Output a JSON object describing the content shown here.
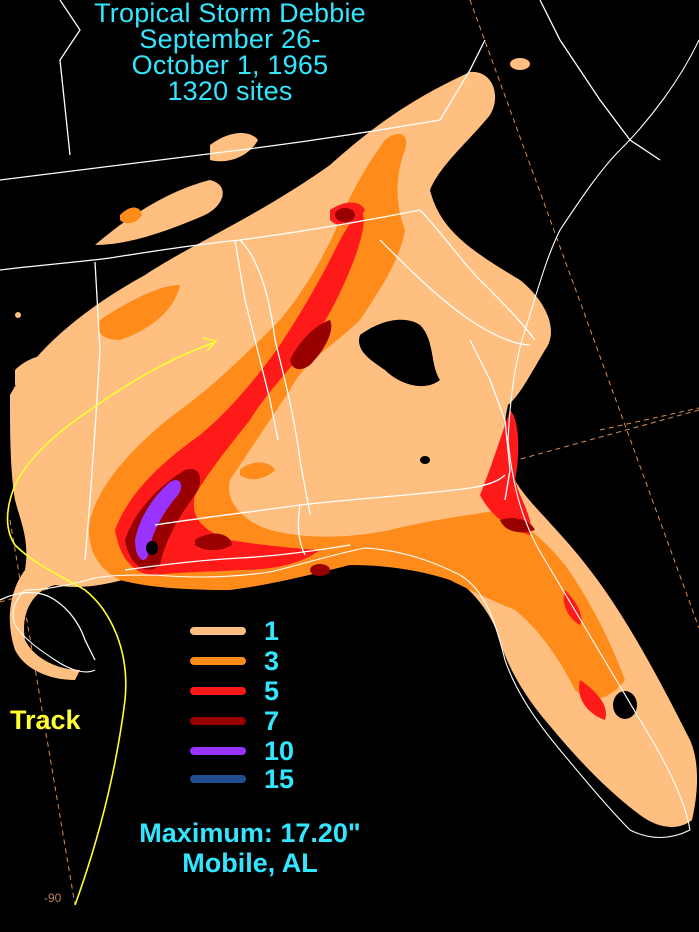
{
  "title": {
    "line1": "Tropical Storm Debbie",
    "line2": "September 26-",
    "line3": "October 1, 1965",
    "line4": "1320 sites"
  },
  "legend": [
    {
      "label": "1",
      "color": "#ffbf80"
    },
    {
      "label": "3",
      "color": "#ff8c1a"
    },
    {
      "label": "5",
      "color": "#ff1a1a"
    },
    {
      "label": "7",
      "color": "#990000"
    },
    {
      "label": "10",
      "color": "#9933ff"
    },
    {
      "label": "15",
      "color": "#1f4f8f"
    }
  ],
  "track_label": "Track",
  "track_color": "#ffff33",
  "maximum": {
    "label": "Maximum: 17.20\"",
    "location": "Mobile, AL"
  },
  "longitude_label": "-90",
  "colors": {
    "background": "#000000",
    "boundaries": "#ffffff",
    "gridlines": "#d98c4d",
    "text": "#33e6ff"
  }
}
